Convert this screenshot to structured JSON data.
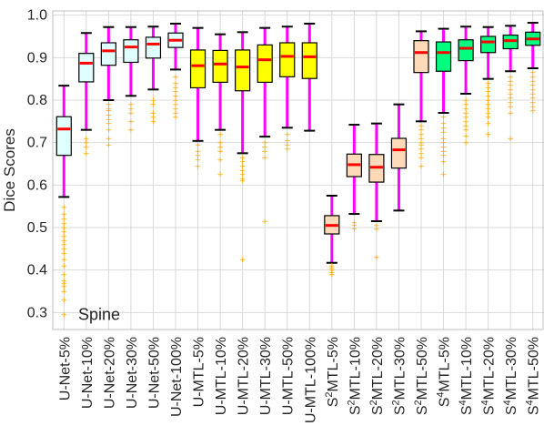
{
  "chart_data": {
    "type": "box",
    "title": "",
    "xlabel": "",
    "ylabel": "Dice Scores",
    "annotation": "Spine",
    "ylim": [
      0.26,
      1.01
    ],
    "yticks": [
      0.3,
      0.4,
      0.5,
      0.6,
      0.7,
      0.8,
      0.9,
      1.0
    ],
    "ytick_labels": [
      "0.3",
      "0.4",
      "0.5",
      "0.6",
      "0.7",
      "0.8",
      "0.9",
      "1.0"
    ],
    "grid": true,
    "colors": {
      "whisker": "#ff00ff",
      "median": "#ff0000",
      "outlier": "#ffa500",
      "box_edge": "#000000",
      "cap": "#000000",
      "grid": "#d9d9d9",
      "frame": "#bfbfbf"
    },
    "categories": [
      {
        "main": "U-Net-5%",
        "sup": "",
        "post": "",
        "fill": "#e0ffff",
        "q1": 0.67,
        "median": 0.732,
        "q3": 0.761,
        "whislo": 0.572,
        "whishi": 0.834,
        "fliers": [
          0.548,
          0.532,
          0.52,
          0.51,
          0.5,
          0.49,
          0.48,
          0.47,
          0.46,
          0.45,
          0.44,
          0.425,
          0.41,
          0.39,
          0.375,
          0.368,
          0.362,
          0.35,
          0.33,
          0.295
        ]
      },
      {
        "main": "U-Net-10%",
        "sup": "",
        "post": "",
        "fill": "#e0ffff",
        "q1": 0.843,
        "median": 0.887,
        "q3": 0.91,
        "whislo": 0.73,
        "whishi": 0.958,
        "fliers": [
          0.71,
          0.7,
          0.69,
          0.675
        ]
      },
      {
        "main": "U-Net-20%",
        "sup": "",
        "post": "",
        "fill": "#e0ffff",
        "q1": 0.882,
        "median": 0.916,
        "q3": 0.935,
        "whislo": 0.8,
        "whishi": 0.972,
        "fliers": [
          0.79,
          0.78,
          0.775,
          0.765,
          0.755,
          0.745,
          0.73,
          0.71,
          0.695
        ]
      },
      {
        "main": "U-Net-30%",
        "sup": "",
        "post": "",
        "fill": "#e0ffff",
        "q1": 0.889,
        "median": 0.925,
        "q3": 0.942,
        "whislo": 0.81,
        "whishi": 0.972,
        "fliers": [
          0.79,
          0.78,
          0.77,
          0.75,
          0.73
        ]
      },
      {
        "main": "U-Net-50%",
        "sup": "",
        "post": "",
        "fill": "#e0ffff",
        "q1": 0.899,
        "median": 0.932,
        "q3": 0.948,
        "whislo": 0.825,
        "whishi": 0.973,
        "fliers": [
          0.8,
          0.79,
          0.77,
          0.76,
          0.75
        ]
      },
      {
        "main": "U-Net-100%",
        "sup": "",
        "post": "",
        "fill": "#e0ffff",
        "q1": 0.924,
        "median": 0.941,
        "q3": 0.958,
        "whislo": 0.872,
        "whishi": 0.98,
        "fliers": [
          0.855,
          0.84,
          0.83,
          0.82,
          0.81,
          0.8,
          0.79,
          0.78,
          0.77,
          0.76
        ]
      },
      {
        "main": "U-MTL-5%",
        "sup": "",
        "post": "",
        "fill": "#ffff00",
        "q1": 0.829,
        "median": 0.881,
        "q3": 0.918,
        "whislo": 0.704,
        "whishi": 0.97,
        "fliers": [
          0.695,
          0.68,
          0.67,
          0.66,
          0.645
        ]
      },
      {
        "main": "U-MTL-10%",
        "sup": "",
        "post": "",
        "fill": "#ffff00",
        "q1": 0.842,
        "median": 0.885,
        "q3": 0.917,
        "whislo": 0.73,
        "whishi": 0.955,
        "fliers": [
          0.72,
          0.7,
          0.69,
          0.68,
          0.66,
          0.625
        ]
      },
      {
        "main": "U-MTL-20%",
        "sup": "",
        "post": "",
        "fill": "#ffff00",
        "q1": 0.822,
        "median": 0.878,
        "q3": 0.918,
        "whislo": 0.675,
        "whishi": 0.96,
        "fliers": [
          0.665,
          0.655,
          0.645,
          0.635,
          0.625,
          0.615,
          0.61,
          0.425
        ]
      },
      {
        "main": "U-MTL-30%",
        "sup": "",
        "post": "",
        "fill": "#ffff00",
        "q1": 0.842,
        "median": 0.895,
        "q3": 0.93,
        "whislo": 0.714,
        "whishi": 0.97,
        "fliers": [
          0.7,
          0.69,
          0.68,
          0.665,
          0.515
        ]
      },
      {
        "main": "U-MTL-50%",
        "sup": "",
        "post": "",
        "fill": "#ffff00",
        "q1": 0.855,
        "median": 0.903,
        "q3": 0.935,
        "whislo": 0.735,
        "whishi": 0.973,
        "fliers": [
          0.72,
          0.705,
          0.695,
          0.685
        ]
      },
      {
        "main": "U-MTL-100%",
        "sup": "",
        "post": "",
        "fill": "#ffff00",
        "q1": 0.851,
        "median": 0.902,
        "q3": 0.935,
        "whislo": 0.728,
        "whishi": 0.98,
        "fliers": []
      },
      {
        "main": "S",
        "sup": "2",
        "post": "MTL-5%",
        "fill": "#ffdab9",
        "q1": 0.485,
        "median": 0.505,
        "q3": 0.528,
        "whislo": 0.417,
        "whishi": 0.575,
        "fliers": [
          0.41,
          0.405,
          0.4,
          0.395,
          0.39
        ]
      },
      {
        "main": "S",
        "sup": "2",
        "post": "MTL-10%",
        "fill": "#ffdab9",
        "q1": 0.62,
        "median": 0.648,
        "q3": 0.673,
        "whislo": 0.532,
        "whishi": 0.742,
        "fliers": [
          0.512,
          0.505,
          0.498
        ]
      },
      {
        "main": "S",
        "sup": "2",
        "post": "MTL-20%",
        "fill": "#ffdab9",
        "q1": 0.607,
        "median": 0.642,
        "q3": 0.672,
        "whislo": 0.515,
        "whishi": 0.745,
        "fliers": [
          0.505,
          0.497,
          0.43
        ]
      },
      {
        "main": "S",
        "sup": "2",
        "post": "MTL-30%",
        "fill": "#ffdab9",
        "q1": 0.64,
        "median": 0.683,
        "q3": 0.71,
        "whislo": 0.54,
        "whishi": 0.79,
        "fliers": []
      },
      {
        "main": "S",
        "sup": "2",
        "post": "MTL-50%",
        "fill": "#ffdab9",
        "q1": 0.865,
        "median": 0.912,
        "q3": 0.94,
        "whislo": 0.75,
        "whishi": 0.962,
        "fliers": [
          0.74,
          0.73,
          0.72,
          0.71,
          0.7,
          0.695,
          0.685,
          0.675,
          0.665,
          0.645
        ]
      },
      {
        "main": "S",
        "sup": "4",
        "post": "MTL-5%",
        "fill": "#00ff7f",
        "q1": 0.868,
        "median": 0.912,
        "q3": 0.937,
        "whislo": 0.77,
        "whishi": 0.968,
        "fliers": [
          0.76,
          0.745,
          0.735,
          0.725,
          0.71,
          0.7,
          0.69,
          0.68,
          0.67,
          0.655,
          0.625
        ]
      },
      {
        "main": "S",
        "sup": "4",
        "post": "MTL-10%",
        "fill": "#00ff7f",
        "q1": 0.893,
        "median": 0.922,
        "q3": 0.942,
        "whislo": 0.815,
        "whishi": 0.973,
        "fliers": [
          0.8,
          0.79,
          0.78,
          0.77,
          0.76,
          0.75,
          0.74,
          0.73,
          0.715,
          0.7
        ]
      },
      {
        "main": "S",
        "sup": "4",
        "post": "MTL-20%",
        "fill": "#00ff7f",
        "q1": 0.912,
        "median": 0.937,
        "q3": 0.95,
        "whislo": 0.85,
        "whishi": 0.972,
        "fliers": [
          0.84,
          0.83,
          0.82,
          0.81,
          0.8,
          0.79,
          0.78,
          0.77,
          0.76,
          0.745,
          0.72
        ]
      },
      {
        "main": "S",
        "sup": "4",
        "post": "MTL-30%",
        "fill": "#00ff7f",
        "q1": 0.921,
        "median": 0.94,
        "q3": 0.953,
        "whislo": 0.868,
        "whishi": 0.975,
        "fliers": [
          0.855,
          0.845,
          0.835,
          0.825,
          0.815,
          0.805,
          0.795,
          0.785,
          0.77,
          0.71
        ]
      },
      {
        "main": "S",
        "sup": "4",
        "post": "MTL-50%",
        "fill": "#00ff7f",
        "q1": 0.929,
        "median": 0.944,
        "q3": 0.96,
        "whislo": 0.875,
        "whishi": 0.982,
        "fliers": [
          0.865,
          0.855,
          0.845,
          0.835,
          0.825,
          0.815,
          0.805,
          0.795,
          0.785,
          0.775
        ]
      }
    ]
  }
}
